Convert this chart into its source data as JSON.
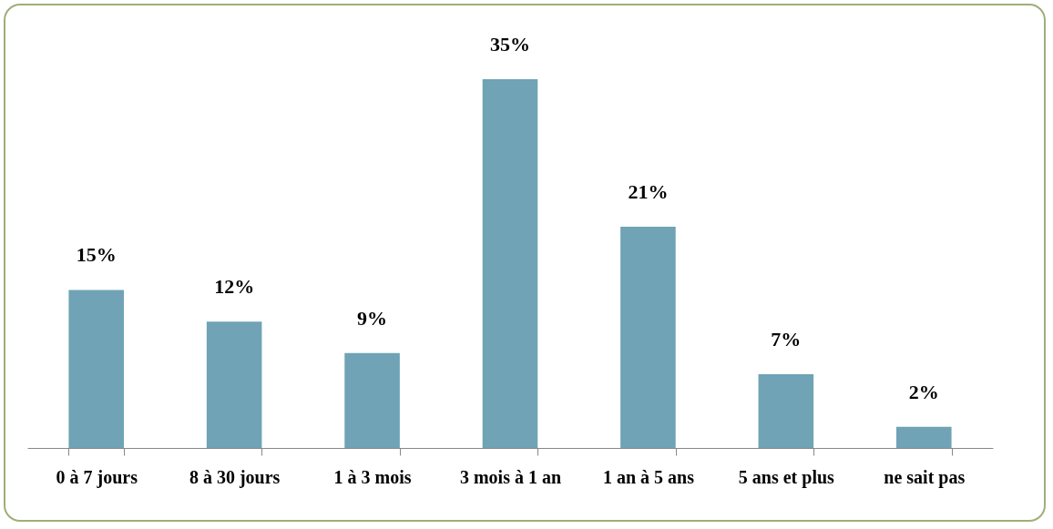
{
  "chart_data": {
    "type": "bar",
    "categories": [
      "0 à 7 jours",
      "8 à 30 jours",
      "1 à 3 mois",
      "3 mois à 1 an",
      "1 an à 5 ans",
      "5 ans et plus",
      "ne sait pas"
    ],
    "values": [
      15,
      12,
      9,
      35,
      21,
      7,
      2
    ],
    "value_labels": [
      "15%",
      "12%",
      "9%",
      "35%",
      "21%",
      "7%",
      "2%"
    ],
    "color": "#6fa3b5",
    "grid": false
  }
}
